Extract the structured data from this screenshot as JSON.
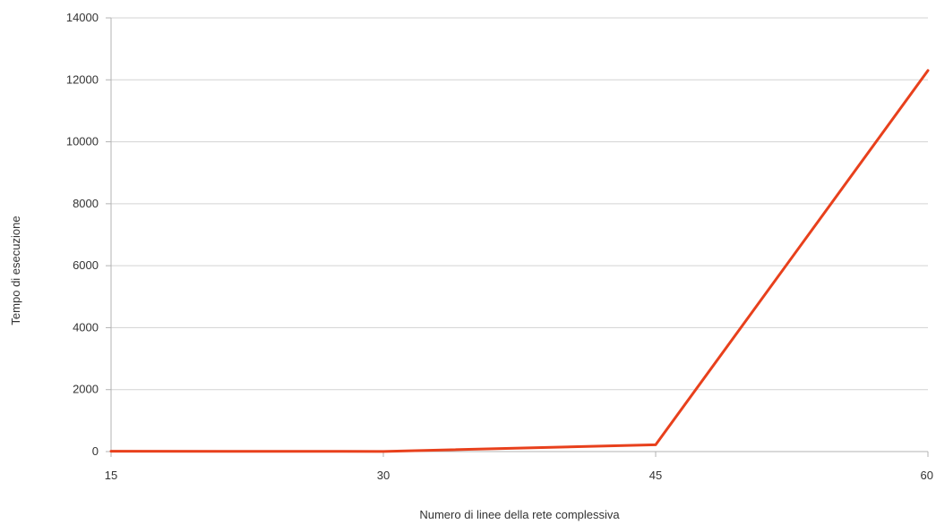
{
  "chart_data": {
    "type": "line",
    "title": "",
    "xlabel": "Numero di linee della rete complessiva",
    "ylabel": "Tempo di esecuzione",
    "x": [
      15,
      30,
      45,
      60
    ],
    "x_tick_labels": [
      "15",
      "30",
      "45",
      "60"
    ],
    "y_ticks": [
      0,
      2000,
      4000,
      6000,
      8000,
      10000,
      12000,
      14000
    ],
    "y_tick_labels": [
      "0",
      "2000",
      "4000",
      "6000",
      "8000",
      "10000",
      "12000",
      "14000"
    ],
    "xlim": [
      15,
      60
    ],
    "ylim": [
      0,
      14000
    ],
    "grid": "horizontal",
    "legend": "none",
    "series": [
      {
        "values": [
          10,
          5,
          220,
          12300
        ],
        "color": "#e8401c"
      }
    ],
    "colors": {
      "line": "#e8401c",
      "grid": "#d3d3d3",
      "axis": "#b3b3b3",
      "text": "#333333"
    }
  }
}
